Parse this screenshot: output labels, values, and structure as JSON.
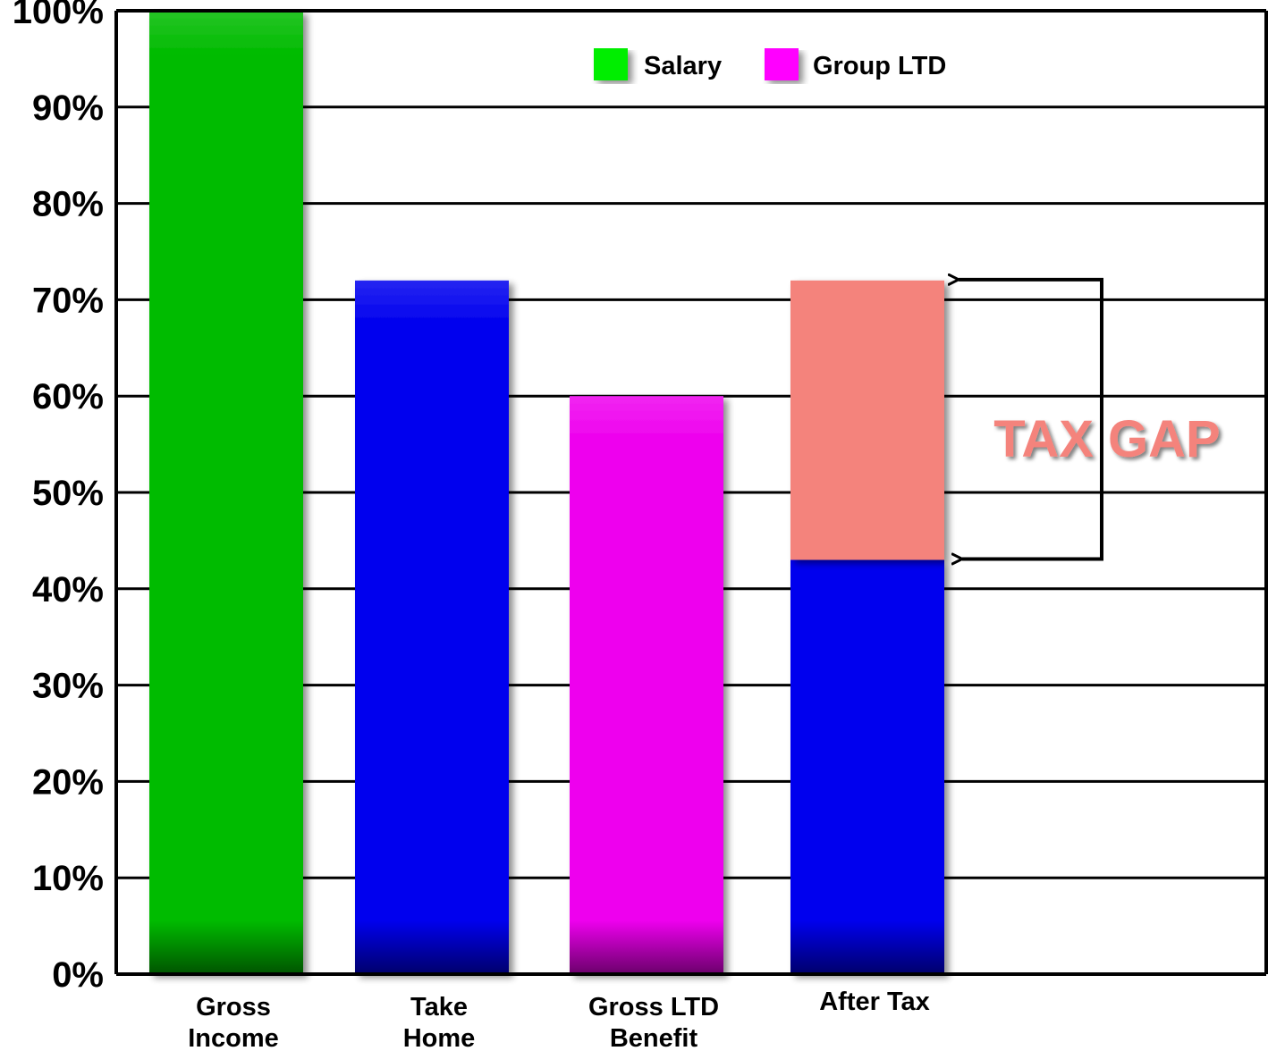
{
  "chart_data": {
    "type": "bar",
    "stacked": true,
    "categories": [
      [
        "Gross",
        "Income"
      ],
      [
        "Take",
        "Home"
      ],
      [
        "Gross LTD",
        "Benefit"
      ],
      [
        "After Tax"
      ]
    ],
    "ylim": [
      0,
      100
    ],
    "yticks": [
      0,
      10,
      20,
      30,
      40,
      50,
      60,
      70,
      80,
      90,
      100
    ],
    "ytick_suffix": "%",
    "grid": true,
    "legend_position": "top",
    "legend": [
      {
        "label": "Salary",
        "color": "#00ee00"
      },
      {
        "label": "Group LTD",
        "color": "#ff00ff"
      }
    ],
    "bars": [
      {
        "segments": [
          {
            "value": 100,
            "color": "#00bb00"
          }
        ]
      },
      {
        "segments": [
          {
            "value": 72,
            "color": "#0000ee"
          }
        ]
      },
      {
        "segments": [
          {
            "value": 60,
            "color": "#ee00ee"
          }
        ]
      },
      {
        "segments": [
          {
            "value": 43,
            "color": "#0000ee"
          },
          {
            "value": 29,
            "color": "#f4837c"
          }
        ]
      }
    ],
    "annotation": {
      "text": "TAX GAP",
      "from": 43,
      "to": 72,
      "color": "#f4837c"
    }
  }
}
